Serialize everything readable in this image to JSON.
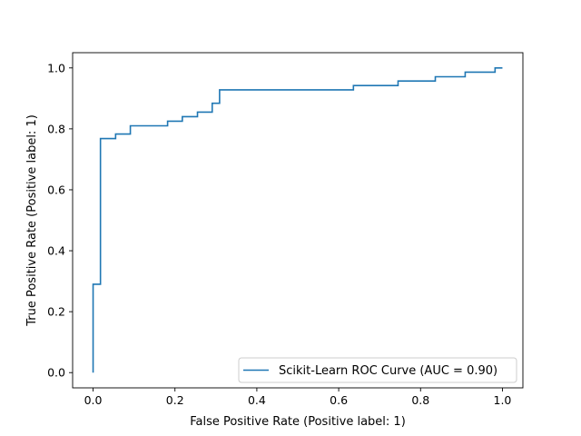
{
  "chart_data": {
    "type": "line",
    "xlabel": "False Positive Rate (Positive label: 1)",
    "ylabel": "True Positive Rate (Positive label: 1)",
    "xlim": [
      -0.05,
      1.05
    ],
    "ylim": [
      -0.05,
      1.05
    ],
    "xticks": [
      0.0,
      0.2,
      0.4,
      0.6,
      0.8,
      1.0
    ],
    "yticks": [
      0.0,
      0.2,
      0.4,
      0.6,
      0.8,
      1.0
    ],
    "xtick_labels": [
      "0.0",
      "0.2",
      "0.4",
      "0.6",
      "0.8",
      "1.0"
    ],
    "ytick_labels": [
      "0.0",
      "0.2",
      "0.4",
      "0.6",
      "0.8",
      "1.0"
    ],
    "grid": false,
    "legend_position": "lower-right",
    "series": [
      {
        "name": "Scikit-Learn ROC Curve (AUC = 0.90)",
        "color": "#1f77b4",
        "step": true,
        "points": [
          [
            0.0,
            0.0
          ],
          [
            0.0,
            0.29
          ],
          [
            0.018,
            0.29
          ],
          [
            0.018,
            0.768
          ],
          [
            0.055,
            0.768
          ],
          [
            0.055,
            0.783
          ],
          [
            0.091,
            0.783
          ],
          [
            0.091,
            0.81
          ],
          [
            0.182,
            0.81
          ],
          [
            0.182,
            0.825
          ],
          [
            0.218,
            0.825
          ],
          [
            0.218,
            0.84
          ],
          [
            0.255,
            0.84
          ],
          [
            0.255,
            0.855
          ],
          [
            0.291,
            0.855
          ],
          [
            0.291,
            0.884
          ],
          [
            0.309,
            0.884
          ],
          [
            0.309,
            0.928
          ],
          [
            0.636,
            0.928
          ],
          [
            0.636,
            0.942
          ],
          [
            0.745,
            0.942
          ],
          [
            0.745,
            0.957
          ],
          [
            0.836,
            0.957
          ],
          [
            0.836,
            0.971
          ],
          [
            0.909,
            0.971
          ],
          [
            0.909,
            0.986
          ],
          [
            0.982,
            0.986
          ],
          [
            0.982,
            1.0
          ],
          [
            1.0,
            1.0
          ]
        ]
      }
    ]
  }
}
